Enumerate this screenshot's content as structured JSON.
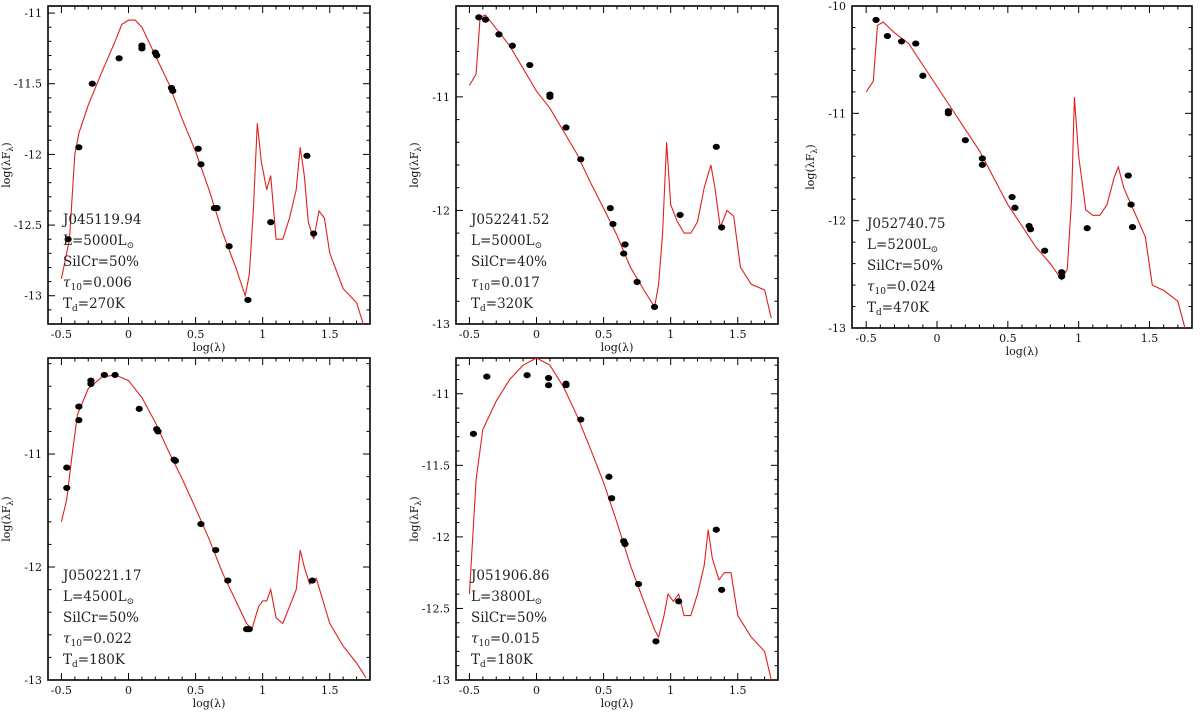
{
  "colors": {
    "model_line": "#e0201c",
    "points": "#000000",
    "axes": "#000000"
  },
  "chart_data": [
    {
      "type": "line+scatter",
      "id": "J045119.94",
      "xlabel": "log(λ)",
      "ylabel": "log(λF",
      "xlim": [
        -0.6,
        1.8
      ],
      "ylim": [
        -13.2,
        -10.95
      ],
      "xticks": [
        -0.5,
        0,
        0.5,
        1,
        1.5
      ],
      "xticklabels": [
        "-0.5",
        "0",
        "0.5",
        "1",
        "1.5"
      ],
      "yticks": [
        -13,
        -12.5,
        -12,
        -11.5,
        -11
      ],
      "yticklabels": [
        "-13",
        "-12.5",
        "-12",
        "-11.5",
        "-11"
      ],
      "annotation": [
        "J045119.94",
        "L=5000L",
        "SilCr=50%",
        "=0.006",
        "=270K"
      ],
      "model": [
        [
          -0.5,
          -12.88
        ],
        [
          -0.44,
          -12.6
        ],
        [
          -0.4,
          -12.0
        ],
        [
          -0.37,
          -11.85
        ],
        [
          -0.3,
          -11.65
        ],
        [
          -0.2,
          -11.42
        ],
        [
          -0.1,
          -11.2
        ],
        [
          -0.05,
          -11.08
        ],
        [
          0.0,
          -11.05
        ],
        [
          0.05,
          -11.05
        ],
        [
          0.1,
          -11.1
        ],
        [
          0.2,
          -11.3
        ],
        [
          0.3,
          -11.5
        ],
        [
          0.4,
          -11.75
        ],
        [
          0.5,
          -11.98
        ],
        [
          0.6,
          -12.25
        ],
        [
          0.7,
          -12.55
        ],
        [
          0.8,
          -12.8
        ],
        [
          0.87,
          -13.0
        ],
        [
          0.9,
          -12.85
        ],
        [
          0.93,
          -12.4
        ],
        [
          0.96,
          -11.78
        ],
        [
          0.99,
          -12.05
        ],
        [
          1.03,
          -12.25
        ],
        [
          1.06,
          -12.15
        ],
        [
          1.1,
          -12.6
        ],
        [
          1.15,
          -12.6
        ],
        [
          1.2,
          -12.45
        ],
        [
          1.25,
          -12.25
        ],
        [
          1.28,
          -11.95
        ],
        [
          1.31,
          -12.15
        ],
        [
          1.34,
          -12.48
        ],
        [
          1.38,
          -12.6
        ],
        [
          1.42,
          -12.4
        ],
        [
          1.46,
          -12.45
        ],
        [
          1.5,
          -12.7
        ],
        [
          1.6,
          -12.95
        ],
        [
          1.7,
          -13.05
        ],
        [
          1.75,
          -13.2
        ]
      ],
      "points": [
        [
          -0.45,
          -12.6
        ],
        [
          -0.37,
          -11.95
        ],
        [
          -0.27,
          -11.5
        ],
        [
          -0.07,
          -11.32
        ],
        [
          0.1,
          -11.25
        ],
        [
          0.1,
          -11.23
        ],
        [
          0.2,
          -11.28
        ],
        [
          0.21,
          -11.3
        ],
        [
          0.32,
          -11.53
        ],
        [
          0.33,
          -11.55
        ],
        [
          0.52,
          -11.96
        ],
        [
          0.54,
          -12.07
        ],
        [
          0.64,
          -12.38
        ],
        [
          0.66,
          -12.38
        ],
        [
          0.75,
          -12.65
        ],
        [
          0.89,
          -13.03
        ],
        [
          1.06,
          -12.48
        ],
        [
          1.33,
          -12.01
        ],
        [
          1.38,
          -12.56
        ]
      ]
    },
    {
      "type": "line+scatter",
      "id": "J052241.52",
      "xlabel": "log(λ)",
      "ylabel": "log(λF",
      "xlim": [
        -0.6,
        1.8
      ],
      "ylim": [
        -13.0,
        -10.2
      ],
      "xticks": [
        -0.5,
        0,
        0.5,
        1,
        1.5
      ],
      "xticklabels": [
        "-0.5",
        "0",
        "0.5",
        "1",
        "1.5"
      ],
      "yticks": [
        -13,
        -12,
        -11
      ],
      "yticklabels": [
        "-13",
        "-12",
        "-11"
      ],
      "annotation": [
        "J052241.52",
        "L=5000L",
        "SilCr=40%",
        "=0.017",
        "=320K"
      ],
      "model": [
        [
          -0.5,
          -10.9
        ],
        [
          -0.45,
          -10.8
        ],
        [
          -0.42,
          -10.3
        ],
        [
          -0.38,
          -10.28
        ],
        [
          -0.3,
          -10.4
        ],
        [
          -0.2,
          -10.55
        ],
        [
          -0.1,
          -10.75
        ],
        [
          0.0,
          -10.95
        ],
        [
          0.1,
          -11.1
        ],
        [
          0.2,
          -11.3
        ],
        [
          0.3,
          -11.5
        ],
        [
          0.4,
          -11.75
        ],
        [
          0.5,
          -11.98
        ],
        [
          0.6,
          -12.22
        ],
        [
          0.7,
          -12.5
        ],
        [
          0.8,
          -12.7
        ],
        [
          0.88,
          -12.85
        ],
        [
          0.91,
          -12.65
        ],
        [
          0.94,
          -12.2
        ],
        [
          0.97,
          -11.4
        ],
        [
          1.0,
          -11.95
        ],
        [
          1.05,
          -12.1
        ],
        [
          1.1,
          -12.2
        ],
        [
          1.15,
          -12.2
        ],
        [
          1.2,
          -12.1
        ],
        [
          1.25,
          -11.8
        ],
        [
          1.3,
          -11.6
        ],
        [
          1.33,
          -11.8
        ],
        [
          1.37,
          -12.15
        ],
        [
          1.42,
          -12.0
        ],
        [
          1.47,
          -12.05
        ],
        [
          1.52,
          -12.5
        ],
        [
          1.6,
          -12.65
        ],
        [
          1.7,
          -12.7
        ],
        [
          1.75,
          -12.95
        ]
      ],
      "points": [
        [
          -0.43,
          -10.3
        ],
        [
          -0.38,
          -10.32
        ],
        [
          -0.28,
          -10.45
        ],
        [
          -0.18,
          -10.55
        ],
        [
          -0.05,
          -10.72
        ],
        [
          0.1,
          -10.98
        ],
        [
          0.1,
          -11.0
        ],
        [
          0.22,
          -11.27
        ],
        [
          0.33,
          -11.55
        ],
        [
          0.55,
          -11.98
        ],
        [
          0.57,
          -12.12
        ],
        [
          0.65,
          -12.38
        ],
        [
          0.66,
          -12.3
        ],
        [
          0.75,
          -12.63
        ],
        [
          0.88,
          -12.85
        ],
        [
          1.07,
          -12.04
        ],
        [
          1.34,
          -11.44
        ],
        [
          1.38,
          -12.15
        ]
      ]
    },
    {
      "type": "line+scatter",
      "id": "J052740.75",
      "xlabel": "log(λ)",
      "ylabel": "log(λF",
      "xlim": [
        -0.6,
        1.8
      ],
      "ylim": [
        -13.0,
        -10.0
      ],
      "xticks": [
        -0.5,
        0,
        0.5,
        1,
        1.5
      ],
      "xticklabels": [
        "-0.5",
        "0",
        "0.5",
        "1",
        "1.5"
      ],
      "yticks": [
        -13,
        -12,
        -11,
        -10
      ],
      "yticklabels": [
        "-13",
        "-12",
        "-11",
        "-10"
      ],
      "annotation": [
        "J052740.75",
        "L=5200L",
        "SilCr=50%",
        "=0.024",
        "=470K"
      ],
      "model": [
        [
          -0.5,
          -10.8
        ],
        [
          -0.45,
          -10.7
        ],
        [
          -0.42,
          -10.18
        ],
        [
          -0.38,
          -10.15
        ],
        [
          -0.3,
          -10.25
        ],
        [
          -0.2,
          -10.35
        ],
        [
          -0.1,
          -10.55
        ],
        [
          0.0,
          -10.75
        ],
        [
          0.1,
          -10.95
        ],
        [
          0.2,
          -11.15
        ],
        [
          0.3,
          -11.35
        ],
        [
          0.4,
          -11.6
        ],
        [
          0.5,
          -11.85
        ],
        [
          0.6,
          -12.05
        ],
        [
          0.7,
          -12.25
        ],
        [
          0.8,
          -12.4
        ],
        [
          0.88,
          -12.55
        ],
        [
          0.92,
          -12.45
        ],
        [
          0.95,
          -11.8
        ],
        [
          0.97,
          -10.85
        ],
        [
          1.0,
          -11.4
        ],
        [
          1.05,
          -11.9
        ],
        [
          1.1,
          -11.95
        ],
        [
          1.15,
          -11.95
        ],
        [
          1.2,
          -11.85
        ],
        [
          1.25,
          -11.6
        ],
        [
          1.28,
          -11.5
        ],
        [
          1.32,
          -11.7
        ],
        [
          1.37,
          -11.85
        ],
        [
          1.42,
          -12.0
        ],
        [
          1.47,
          -12.15
        ],
        [
          1.52,
          -12.6
        ],
        [
          1.6,
          -12.65
        ],
        [
          1.7,
          -12.75
        ],
        [
          1.75,
          -13.0
        ]
      ],
      "points": [
        [
          -0.43,
          -10.13
        ],
        [
          -0.35,
          -10.28
        ],
        [
          -0.25,
          -10.33
        ],
        [
          -0.15,
          -10.35
        ],
        [
          -0.1,
          -10.65
        ],
        [
          0.08,
          -10.98
        ],
        [
          0.08,
          -11.0
        ],
        [
          0.2,
          -11.25
        ],
        [
          0.32,
          -11.42
        ],
        [
          0.32,
          -11.48
        ],
        [
          0.53,
          -11.78
        ],
        [
          0.55,
          -11.88
        ],
        [
          0.65,
          -12.05
        ],
        [
          0.66,
          -12.08
        ],
        [
          0.76,
          -12.28
        ],
        [
          0.88,
          -12.48
        ],
        [
          0.88,
          -12.52
        ],
        [
          1.06,
          -12.07
        ],
        [
          1.35,
          -11.58
        ],
        [
          1.37,
          -11.85
        ],
        [
          1.38,
          -12.06
        ]
      ]
    },
    {
      "type": "line+scatter",
      "id": "J050221.17",
      "xlabel": "log(λ)",
      "ylabel": "log(λF",
      "xlim": [
        -0.6,
        1.8
      ],
      "ylim": [
        -13.0,
        -10.15
      ],
      "xticks": [
        -0.5,
        0,
        0.5,
        1,
        1.5
      ],
      "xticklabels": [
        "-0.5",
        "0",
        "0.5",
        "1",
        "1.5"
      ],
      "yticks": [
        -13,
        -12,
        -11
      ],
      "yticklabels": [
        "-13",
        "-12",
        "-11"
      ],
      "annotation": [
        "J050221.17",
        "L=4500L",
        "SilCr=50%",
        "=0.022",
        "=180K"
      ],
      "model": [
        [
          -0.5,
          -11.6
        ],
        [
          -0.46,
          -11.4
        ],
        [
          -0.42,
          -11.0
        ],
        [
          -0.38,
          -10.65
        ],
        [
          -0.3,
          -10.42
        ],
        [
          -0.2,
          -10.32
        ],
        [
          -0.1,
          -10.3
        ],
        [
          0.0,
          -10.35
        ],
        [
          0.1,
          -10.5
        ],
        [
          0.2,
          -10.72
        ],
        [
          0.3,
          -10.98
        ],
        [
          0.4,
          -11.22
        ],
        [
          0.5,
          -11.48
        ],
        [
          0.6,
          -11.75
        ],
        [
          0.7,
          -12.05
        ],
        [
          0.8,
          -12.3
        ],
        [
          0.88,
          -12.5
        ],
        [
          0.92,
          -12.55
        ],
        [
          0.97,
          -12.35
        ],
        [
          1.0,
          -12.3
        ],
        [
          1.03,
          -12.3
        ],
        [
          1.06,
          -12.2
        ],
        [
          1.1,
          -12.45
        ],
        [
          1.15,
          -12.5
        ],
        [
          1.2,
          -12.35
        ],
        [
          1.25,
          -12.2
        ],
        [
          1.28,
          -11.85
        ],
        [
          1.31,
          -12.0
        ],
        [
          1.35,
          -12.15
        ],
        [
          1.4,
          -12.1
        ],
        [
          1.45,
          -12.3
        ],
        [
          1.5,
          -12.5
        ],
        [
          1.6,
          -12.7
        ],
        [
          1.7,
          -12.85
        ],
        [
          1.77,
          -12.98
        ]
      ],
      "points": [
        [
          -0.46,
          -11.12
        ],
        [
          -0.46,
          -11.3
        ],
        [
          -0.37,
          -10.58
        ],
        [
          -0.37,
          -10.7
        ],
        [
          -0.28,
          -10.35
        ],
        [
          -0.28,
          -10.38
        ],
        [
          -0.18,
          -10.3
        ],
        [
          -0.1,
          -10.3
        ],
        [
          0.08,
          -10.6
        ],
        [
          0.21,
          -10.78
        ],
        [
          0.22,
          -10.8
        ],
        [
          0.34,
          -11.05
        ],
        [
          0.35,
          -11.06
        ],
        [
          0.54,
          -11.62
        ],
        [
          0.65,
          -11.85
        ],
        [
          0.74,
          -12.12
        ],
        [
          0.88,
          -12.55
        ],
        [
          0.9,
          -12.55
        ],
        [
          1.37,
          -12.12
        ]
      ]
    },
    {
      "type": "line+scatter",
      "id": "J051906.86",
      "xlabel": "log(λ)",
      "ylabel": "log(λF",
      "xlim": [
        -0.6,
        1.8
      ],
      "ylim": [
        -13.0,
        -10.75
      ],
      "xticks": [
        -0.5,
        0,
        0.5,
        1,
        1.5
      ],
      "xticklabels": [
        "-0.5",
        "0",
        "0.5",
        "1",
        "1.5"
      ],
      "yticks": [
        -13,
        -12.5,
        -12,
        -11.5,
        -11
      ],
      "yticklabels": [
        "-13",
        "-12.5",
        "-12",
        "-11.5",
        "-11"
      ],
      "annotation": [
        "J051906.86",
        "L=3800L",
        "SilCr=50%",
        "=0.015",
        "=180K"
      ],
      "model": [
        [
          -0.5,
          -12.4
        ],
        [
          -0.45,
          -11.6
        ],
        [
          -0.4,
          -11.25
        ],
        [
          -0.3,
          -11.05
        ],
        [
          -0.2,
          -10.9
        ],
        [
          -0.1,
          -10.8
        ],
        [
          0.0,
          -10.75
        ],
        [
          0.1,
          -10.8
        ],
        [
          0.2,
          -10.95
        ],
        [
          0.3,
          -11.15
        ],
        [
          0.4,
          -11.38
        ],
        [
          0.5,
          -11.62
        ],
        [
          0.6,
          -11.9
        ],
        [
          0.7,
          -12.2
        ],
        [
          0.8,
          -12.45
        ],
        [
          0.88,
          -12.65
        ],
        [
          0.91,
          -12.7
        ],
        [
          0.95,
          -12.55
        ],
        [
          0.98,
          -12.4
        ],
        [
          1.02,
          -12.45
        ],
        [
          1.06,
          -12.4
        ],
        [
          1.1,
          -12.55
        ],
        [
          1.15,
          -12.55
        ],
        [
          1.2,
          -12.4
        ],
        [
          1.25,
          -12.2
        ],
        [
          1.28,
          -11.95
        ],
        [
          1.31,
          -12.15
        ],
        [
          1.36,
          -12.3
        ],
        [
          1.4,
          -12.25
        ],
        [
          1.45,
          -12.25
        ],
        [
          1.5,
          -12.55
        ],
        [
          1.6,
          -12.7
        ],
        [
          1.7,
          -12.8
        ],
        [
          1.75,
          -13.0
        ]
      ],
      "points": [
        [
          -0.47,
          -11.28
        ],
        [
          -0.37,
          -10.88
        ],
        [
          -0.07,
          -10.87
        ],
        [
          0.09,
          -10.89
        ],
        [
          0.09,
          -10.94
        ],
        [
          0.22,
          -10.93
        ],
        [
          0.22,
          -10.94
        ],
        [
          0.33,
          -11.18
        ],
        [
          0.54,
          -11.58
        ],
        [
          0.56,
          -11.73
        ],
        [
          0.65,
          -12.03
        ],
        [
          0.66,
          -12.05
        ],
        [
          0.76,
          -12.33
        ],
        [
          0.89,
          -12.73
        ],
        [
          1.06,
          -12.45
        ],
        [
          1.34,
          -11.95
        ],
        [
          1.38,
          -12.37
        ]
      ]
    }
  ]
}
